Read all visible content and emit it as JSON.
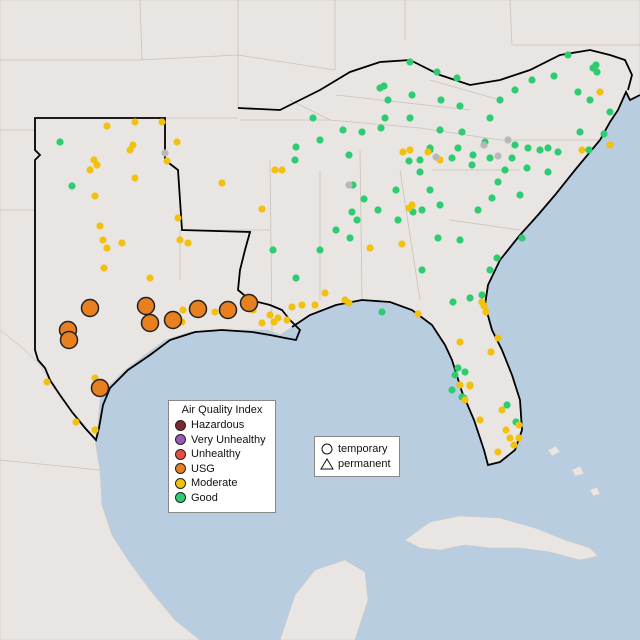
{
  "legend": {
    "title": "Air Quality Index",
    "categories": [
      {
        "label": "Hazardous",
        "color": "#7a2a2a"
      },
      {
        "label": "Very Unhealthy",
        "color": "#9b59b6"
      },
      {
        "label": "Unhealthy",
        "color": "#e74c3c"
      },
      {
        "label": "USG",
        "color": "#e8801f"
      },
      {
        "label": "Moderate",
        "color": "#f2c10e"
      },
      {
        "label": "Good",
        "color": "#2ecc71"
      }
    ]
  },
  "shapes": {
    "temporary": "temporary",
    "permanent": "permanent"
  },
  "colors": {
    "water": "#b9cde0",
    "land": "#e9e5e2",
    "good": "#2ecc71",
    "moderate": "#f2c10e",
    "usg": "#e8801f",
    "unknown": "#b8b8b8"
  }
}
